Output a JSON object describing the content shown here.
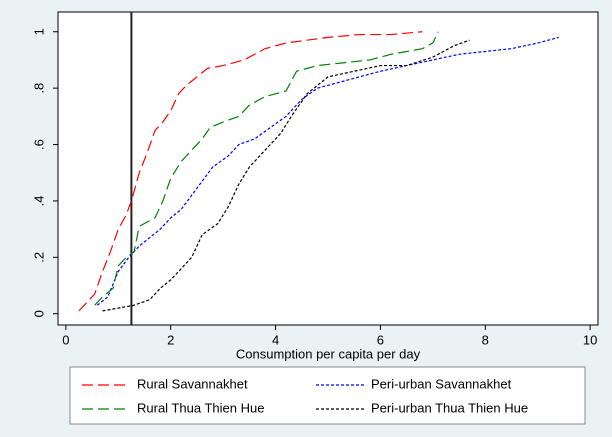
{
  "chart_data": {
    "type": "line",
    "xlabel": "Consumption per capita per day",
    "xlim": [
      -0.15,
      10.15
    ],
    "ylim": [
      -0.04,
      1.07
    ],
    "xticks": [
      0,
      2,
      4,
      6,
      8,
      10
    ],
    "yticks": [
      0,
      {
        "value": 0.2,
        "label": ".2"
      },
      {
        "value": 0.4,
        "label": ".4"
      },
      {
        "value": 0.6,
        "label": ".6"
      },
      {
        "value": 0.8,
        "label": ".8"
      },
      1
    ],
    "reference_x": 1.25,
    "legend": "bottom",
    "series": [
      {
        "name": "Rural Savannakhet",
        "color": "#ff0000",
        "linestyle": "longdash",
        "x": [
          0.25,
          0.4,
          0.55,
          0.7,
          0.85,
          1.0,
          1.15,
          1.25,
          1.4,
          1.55,
          1.7,
          1.85,
          2.0,
          2.15,
          2.3,
          2.5,
          2.7,
          3.0,
          3.4,
          3.8,
          4.2,
          4.6,
          5.0,
          5.6,
          6.2,
          6.8
        ],
        "values": [
          0.01,
          0.04,
          0.07,
          0.15,
          0.22,
          0.3,
          0.35,
          0.4,
          0.5,
          0.57,
          0.65,
          0.68,
          0.72,
          0.78,
          0.81,
          0.84,
          0.87,
          0.88,
          0.9,
          0.94,
          0.96,
          0.97,
          0.98,
          0.99,
          0.99,
          1.0
        ]
      },
      {
        "name": "Peri-urban Savannakhet",
        "color": "#0000ff",
        "linestyle": "dotted",
        "x": [
          0.6,
          0.8,
          1.0,
          1.2,
          1.4,
          1.6,
          1.8,
          2.0,
          2.2,
          2.4,
          2.6,
          2.8,
          3.1,
          3.3,
          3.6,
          3.9,
          4.2,
          4.5,
          4.8,
          5.2,
          5.6,
          6.0,
          6.5,
          7.0,
          7.5,
          8.0,
          8.5,
          9.0,
          9.4
        ],
        "values": [
          0.03,
          0.06,
          0.15,
          0.2,
          0.24,
          0.27,
          0.3,
          0.34,
          0.37,
          0.42,
          0.47,
          0.52,
          0.56,
          0.6,
          0.62,
          0.66,
          0.7,
          0.76,
          0.8,
          0.82,
          0.84,
          0.86,
          0.88,
          0.9,
          0.92,
          0.93,
          0.94,
          0.96,
          0.98
        ]
      },
      {
        "name": "Rural Thua Thien Hue",
        "color": "#008000",
        "linestyle": "longdash",
        "x": [
          0.55,
          0.7,
          0.9,
          1.0,
          1.15,
          1.3,
          1.4,
          1.7,
          1.85,
          2.0,
          2.2,
          2.4,
          2.6,
          2.75,
          3.0,
          3.3,
          3.5,
          3.8,
          4.2,
          4.4,
          4.8,
          5.3,
          5.8,
          6.2,
          6.8,
          7.0,
          7.1
        ],
        "values": [
          0.03,
          0.06,
          0.09,
          0.17,
          0.2,
          0.22,
          0.31,
          0.34,
          0.4,
          0.48,
          0.54,
          0.58,
          0.62,
          0.66,
          0.68,
          0.7,
          0.74,
          0.77,
          0.79,
          0.86,
          0.88,
          0.89,
          0.9,
          0.92,
          0.94,
          0.96,
          1.0
        ]
      },
      {
        "name": "Peri-urban Thua Thien Hue",
        "color": "#000000",
        "linestyle": "dotted",
        "x": [
          0.7,
          1.0,
          1.3,
          1.6,
          1.8,
          2.0,
          2.2,
          2.4,
          2.6,
          2.9,
          3.1,
          3.3,
          3.5,
          3.8,
          4.1,
          4.3,
          4.6,
          5.0,
          5.5,
          6.0,
          6.5,
          7.0,
          7.4,
          7.7
        ],
        "values": [
          0.01,
          0.02,
          0.03,
          0.05,
          0.09,
          0.12,
          0.16,
          0.2,
          0.28,
          0.32,
          0.38,
          0.46,
          0.52,
          0.58,
          0.64,
          0.7,
          0.78,
          0.84,
          0.86,
          0.88,
          0.88,
          0.91,
          0.95,
          0.97
        ]
      }
    ]
  }
}
